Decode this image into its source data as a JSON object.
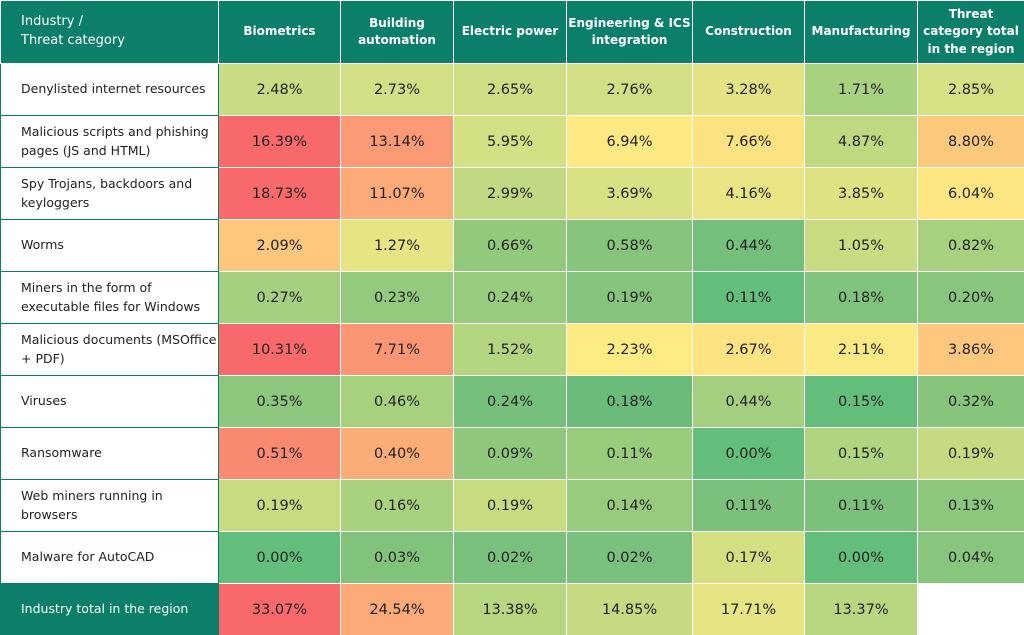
{
  "table": {
    "corner": "Industry /\nThreat category",
    "columns": [
      "Biometrics",
      "Building automation",
      "Electric power",
      "Engineering & ICS integration",
      "Construction",
      "Manufacturing",
      "Threat category total in the region"
    ],
    "rows": [
      {
        "label": "Denylisted internet resources",
        "cells": [
          "2.48%",
          "2.73%",
          "2.65%",
          "2.76%",
          "3.28%",
          "1.71%",
          "2.85%"
        ],
        "colors": [
          "#c9dc84",
          "#d2df84",
          "#cfdd84",
          "#d3df84",
          "#e3e385",
          "#a9d280",
          "#d6e084"
        ]
      },
      {
        "label": "Malicious scripts and phishing pages (JS and HTML)",
        "cells": [
          "16.39%",
          "13.14%",
          "5.95%",
          "6.94%",
          "7.66%",
          "4.87%",
          "8.80%"
        ],
        "colors": [
          "#f8696b",
          "#fb9a74",
          "#d3e083",
          "#fee983",
          "#fde281",
          "#bfd981",
          "#fdc97d"
        ]
      },
      {
        "label": "Spy Trojans, backdoors and keyloggers",
        "cells": [
          "18.73%",
          "11.07%",
          "2.99%",
          "3.69%",
          "4.16%",
          "3.85%",
          "6.04%"
        ],
        "colors": [
          "#f8696b",
          "#fcaa77",
          "#c0d982",
          "#d8e183",
          "#eae584",
          "#dfe283",
          "#fee683"
        ]
      },
      {
        "label": "Worms",
        "cells": [
          "2.09%",
          "1.27%",
          "0.66%",
          "0.58%",
          "0.44%",
          "1.05%",
          "0.82%"
        ],
        "colors": [
          "#fdc87d",
          "#e6e483",
          "#92c97d",
          "#87c57c",
          "#74bf7b",
          "#cadc81",
          "#a7d07f"
        ]
      },
      {
        "label": "Miners in the form of executable files for Windows",
        "cells": [
          "0.27%",
          "0.23%",
          "0.24%",
          "0.19%",
          "0.11%",
          "0.18%",
          "0.20%"
        ],
        "colors": [
          "#a5d07f",
          "#94ca7e",
          "#99cb7e",
          "#84c47c",
          "#63be7b",
          "#80c37c",
          "#89c67d"
        ]
      },
      {
        "label": "Malicious documents (MSOffice + PDF)",
        "cells": [
          "10.31%",
          "7.71%",
          "1.52%",
          "2.23%",
          "2.67%",
          "2.11%",
          "3.86%"
        ],
        "colors": [
          "#f8696b",
          "#fa9673",
          "#b4d580",
          "#ffeb84",
          "#fee382",
          "#fbea84",
          "#fdc87d"
        ]
      },
      {
        "label": "Viruses",
        "cells": [
          "0.35%",
          "0.46%",
          "0.24%",
          "0.18%",
          "0.44%",
          "0.15%",
          "0.32%"
        ],
        "colors": [
          "#8cc77d",
          "#a7d07f",
          "#77c07b",
          "#6bbb7b",
          "#a4cf7f",
          "#63be7b",
          "#87c57c"
        ]
      },
      {
        "label": "Ransomware",
        "cells": [
          "0.51%",
          "0.40%",
          "0.09%",
          "0.11%",
          "0.00%",
          "0.15%",
          "0.19%"
        ],
        "colors": [
          "#f98a71",
          "#fbad78",
          "#8fc87d",
          "#9acc7e",
          "#63be7b",
          "#b0d480",
          "#c6da81"
        ]
      },
      {
        "label": "Web miners running in browsers",
        "cells": [
          "0.19%",
          "0.16%",
          "0.19%",
          "0.14%",
          "0.11%",
          "0.11%",
          "0.13%"
        ],
        "colors": [
          "#c7db81",
          "#a9d27f",
          "#c7db81",
          "#98cb7e",
          "#7bc17c",
          "#7bc17c",
          "#8cc77d"
        ]
      },
      {
        "label": "Malware for AutoCAD",
        "cells": [
          "0.00%",
          "0.03%",
          "0.02%",
          "0.02%",
          "0.17%",
          "0.00%",
          "0.04%"
        ],
        "colors": [
          "#63be7b",
          "#82c37c",
          "#78c07b",
          "#78c07b",
          "#d5df82",
          "#63be7b",
          "#89c67d"
        ]
      }
    ],
    "total": {
      "label": "Industry total in the region",
      "cells": [
        "33.07%",
        "24.54%",
        "13.38%",
        "14.85%",
        "17.71%",
        "13.37%",
        null
      ],
      "colors": [
        "#f8696b",
        "#fcaa77",
        "#b7d680",
        "#c6da81",
        "#e6e483",
        "#b7d680",
        "#ffffff"
      ]
    }
  }
}
